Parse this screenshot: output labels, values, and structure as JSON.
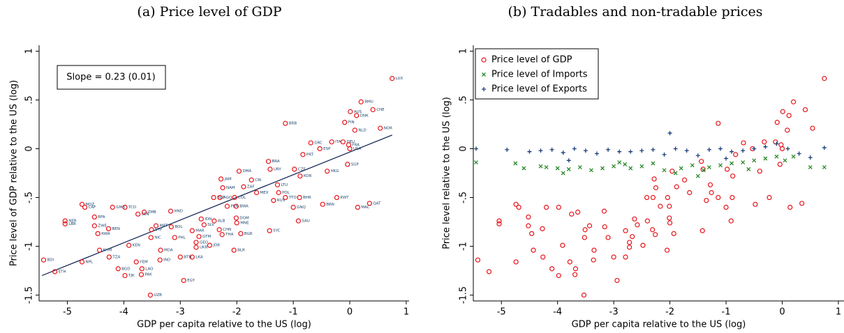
{
  "chart_data": [
    {
      "type": "scatter",
      "title": "(a) Price level of GDP",
      "xlabel": "GDP per capita relative to the US (log)",
      "ylabel": "Price level of GDP relative to the US (log)",
      "xlim": [
        -5.5,
        1.05
      ],
      "ylim": [
        -1.56,
        1.06
      ],
      "xticks": [
        -5,
        -4,
        -3,
        -2,
        -1,
        0,
        1
      ],
      "yticks": [
        -1.5,
        -1,
        {
          "value": -0.5,
          "label": "-.5"
        },
        0,
        {
          "value": 0.5,
          "label": ".5"
        },
        1
      ],
      "annotation": "Slope = 0.23 (0.01)",
      "color": "#e8151b",
      "label_color": "#1a476f",
      "fit_line": {
        "x": [
          -5.45,
          0.75
        ],
        "y": [
          -1.3,
          0.14
        ],
        "color": "#1a2b5a"
      },
      "point_labels": [
        "LUX",
        "BMU",
        "CHE",
        "AUS",
        "DNK",
        "NOR",
        "FIN",
        "BRB",
        "NLD",
        "GRC",
        "ITA",
        "DEU",
        "FRA",
        "ESP",
        "USA",
        "PRT",
        "SGP",
        "BRA",
        "URY",
        "DMA",
        "KOR",
        "HKG",
        "CZE",
        "JAM",
        "CRI",
        "NAM",
        "ZAF",
        "MEX",
        "TTO",
        "BHR",
        "KWT",
        "QAT",
        "MAC",
        "BRN",
        "GNQ",
        "SAU",
        "SYC",
        "MNE",
        "BGR",
        "BLR",
        "JOR",
        "UKR",
        "LKA",
        "EGY",
        "UZB",
        "MDA",
        "BTN",
        "IND",
        "PAK",
        "LAO",
        "TJK",
        "BGD",
        "YEM",
        "KHM",
        "KEN",
        "NPL",
        "TZA",
        "ETH",
        "BDI",
        "NER",
        "LBR",
        "RWA",
        "MOZ",
        "CAF",
        "BFA",
        "BEN",
        "GMB",
        "ZWE",
        "TCD",
        "SEN",
        "NIC",
        "ZMB",
        "MRT",
        "STP",
        "HND",
        "BOL",
        "PHL",
        "GTM",
        "MAR",
        "GEO",
        "ALB",
        "COL",
        "BLZ",
        "BWA",
        "PER",
        "THA",
        "IDN",
        "SLV",
        "AGO",
        "CHN",
        "DOM",
        "LTU",
        "POL",
        "RUS"
      ],
      "x": [
        0.75,
        0.2,
        0.41,
        0.01,
        0.12,
        0.54,
        -0.09,
        -1.14,
        0.09,
        -0.69,
        -0.32,
        -0.12,
        -0.02,
        -0.53,
        0,
        -0.83,
        -0.04,
        -1.44,
        -1.41,
        -1.96,
        -0.88,
        -0.4,
        -0.98,
        -2.28,
        -1.74,
        -2.25,
        -1.88,
        -1.65,
        -1.14,
        -0.89,
        -0.23,
        0.35,
        0.14,
        -0.48,
        -1.0,
        -0.91,
        -1.42,
        -2.0,
        -1.93,
        -2.05,
        -2.48,
        -2.72,
        -2.79,
        -2.94,
        -3.53,
        -3.35,
        -3.0,
        -3.36,
        -3.69,
        -3.68,
        -3.98,
        -4.1,
        -3.78,
        -4.43,
        -3.91,
        -4.74,
        -4.26,
        -5.22,
        -5.42,
        -5.04,
        -5.04,
        -4.46,
        -4.74,
        -4.69,
        -4.52,
        -4.27,
        -4.2,
        -4.52,
        -3.98,
        -3.75,
        -3.52,
        -3.64,
        -3.43,
        -3.51,
        -3.17,
        -3.16,
        -3.1,
        -2.67,
        -2.79,
        -2.72,
        -2.4,
        -2.04,
        -2.41,
        -2.01,
        -2.17,
        -2.26,
        -2.63,
        -2.58,
        -2.3,
        -2.31,
        -2.01,
        -1.28,
        -1.26,
        -1.35
      ],
      "values": [
        0.72,
        0.48,
        0.4,
        0.38,
        0.34,
        0.21,
        0.27,
        0.26,
        0.19,
        0.06,
        0.07,
        0.07,
        0.04,
        0,
        0,
        -0.06,
        -0.16,
        -0.13,
        -0.21,
        -0.23,
        -0.28,
        -0.23,
        -0.21,
        -0.31,
        -0.32,
        -0.4,
        -0.39,
        -0.45,
        -0.5,
        -0.5,
        -0.5,
        -0.56,
        -0.6,
        -0.57,
        -0.6,
        -0.74,
        -0.84,
        -0.76,
        -0.87,
        -1.04,
        -0.99,
        -1.01,
        -1.11,
        -1.35,
        -1.5,
        -1.04,
        -1.11,
        -1.14,
        -1.29,
        -1.23,
        -1.3,
        -1.23,
        -1.16,
        -1.04,
        -0.99,
        -1.16,
        -1.11,
        -1.26,
        -1.14,
        -0.74,
        -0.77,
        -0.87,
        -0.57,
        -0.6,
        -0.7,
        -0.82,
        -0.6,
        -0.79,
        -0.6,
        -0.67,
        -0.91,
        -0.65,
        -0.79,
        -0.83,
        -0.64,
        -0.8,
        -0.91,
        -0.9,
        -0.84,
        -0.96,
        -0.74,
        -0.5,
        -0.5,
        -0.59,
        -0.59,
        -0.88,
        -0.72,
        -0.78,
        -0.5,
        -0.83,
        -0.71,
        -0.37,
        -0.45,
        -0.53
      ]
    },
    {
      "type": "scatter",
      "title": "(b) Tradables and non-tradable prices",
      "xlabel": "GDP per capita relative to the US (log)",
      "ylabel": "Price level relative to the US (log)",
      "xlim": [
        -5.5,
        1.1
      ],
      "ylim": [
        -1.56,
        1.06
      ],
      "xticks": [
        -5,
        -4,
        -3,
        -2,
        -1,
        0,
        1
      ],
      "yticks": [
        -1.5,
        -1,
        {
          "value": -0.5,
          "label": "-.5"
        },
        0,
        {
          "value": 0.5,
          "label": ".5"
        },
        1
      ],
      "legend": "top-left",
      "series": [
        {
          "name": "Price level of GDP",
          "color": "#e8151b",
          "marker": "circle",
          "x": [
            0.75,
            0.2,
            0.41,
            0.01,
            0.12,
            0.54,
            -0.09,
            -1.14,
            0.09,
            -0.69,
            -0.32,
            -0.12,
            -0.02,
            -0.53,
            0,
            -0.83,
            -0.04,
            -1.44,
            -1.41,
            -1.96,
            -0.88,
            -0.4,
            -0.98,
            -2.28,
            -1.74,
            -2.25,
            -1.88,
            -1.65,
            -1.14,
            -0.89,
            -0.23,
            0.35,
            0.14,
            -0.48,
            -1.0,
            -0.91,
            -1.42,
            -2.0,
            -1.93,
            -2.05,
            -2.48,
            -2.72,
            -2.79,
            -2.94,
            -3.53,
            -3.35,
            -3.0,
            -3.36,
            -3.69,
            -3.68,
            -3.98,
            -4.1,
            -3.78,
            -4.43,
            -3.91,
            -4.74,
            -4.26,
            -5.22,
            -5.42,
            -5.04,
            -5.04,
            -4.46,
            -4.74,
            -4.69,
            -4.52,
            -4.27,
            -4.2,
            -4.52,
            -3.98,
            -3.75,
            -3.52,
            -3.64,
            -3.43,
            -3.51,
            -3.17,
            -3.16,
            -3.1,
            -2.67,
            -2.79,
            -2.72,
            -2.4,
            -2.04,
            -2.41,
            -2.01,
            -2.17,
            -2.26,
            -2.63,
            -2.58,
            -2.3,
            -2.31,
            -2.01,
            -1.28,
            -1.26,
            -1.35
          ],
          "values": [
            0.72,
            0.48,
            0.4,
            0.38,
            0.34,
            0.21,
            0.27,
            0.26,
            0.19,
            0.06,
            0.07,
            0.07,
            0.04,
            0,
            0,
            -0.06,
            -0.16,
            -0.13,
            -0.21,
            -0.23,
            -0.28,
            -0.23,
            -0.21,
            -0.31,
            -0.32,
            -0.4,
            -0.39,
            -0.45,
            -0.5,
            -0.5,
            -0.5,
            -0.56,
            -0.6,
            -0.57,
            -0.6,
            -0.74,
            -0.84,
            -0.76,
            -0.87,
            -1.04,
            -0.99,
            -1.01,
            -1.11,
            -1.35,
            -1.5,
            -1.04,
            -1.11,
            -1.14,
            -1.29,
            -1.23,
            -1.3,
            -1.23,
            -1.16,
            -1.04,
            -0.99,
            -1.16,
            -1.11,
            -1.26,
            -1.14,
            -0.74,
            -0.77,
            -0.87,
            -0.57,
            -0.6,
            -0.7,
            -0.82,
            -0.6,
            -0.79,
            -0.6,
            -0.67,
            -0.91,
            -0.65,
            -0.79,
            -0.83,
            -0.64,
            -0.8,
            -0.91,
            -0.9,
            -0.84,
            -0.96,
            -0.74,
            -0.5,
            -0.5,
            -0.59,
            -0.59,
            -0.88,
            -0.72,
            -0.78,
            -0.5,
            -0.83,
            -0.71,
            -0.37,
            -0.45,
            -0.53
          ]
        },
        {
          "name": "Price level of Imports",
          "color": "#2a8a2a",
          "marker": "x",
          "x": [
            -5.45,
            -4.75,
            -4.6,
            -4.3,
            -4.2,
            -4.0,
            -3.8,
            -3.6,
            -3.4,
            -3.2,
            -3.0,
            -2.8,
            -2.7,
            -2.5,
            -2.3,
            -2.1,
            -1.9,
            -1.8,
            -1.6,
            -1.4,
            -1.3,
            -1.1,
            -0.9,
            -0.7,
            -0.5,
            -0.3,
            -0.1,
            0.05,
            0.2,
            0.5,
            0.75,
            -3.9,
            -2.9,
            -1.5,
            -0.6
          ],
          "values": [
            -0.14,
            -0.15,
            -0.2,
            -0.18,
            -0.19,
            -0.2,
            -0.21,
            -0.19,
            -0.22,
            -0.2,
            -0.18,
            -0.16,
            -0.2,
            -0.18,
            -0.15,
            -0.22,
            -0.25,
            -0.2,
            -0.17,
            -0.22,
            -0.19,
            -0.17,
            -0.15,
            -0.14,
            -0.12,
            -0.1,
            -0.08,
            -0.12,
            -0.08,
            -0.19,
            -0.19,
            -0.25,
            -0.14,
            -0.28,
            -0.21
          ]
        },
        {
          "name": "Price level of Exports",
          "color": "#1a3f7a",
          "marker": "plus",
          "x": [
            -5.45,
            -4.9,
            -4.5,
            -4.3,
            -4.1,
            -3.9,
            -3.7,
            -3.5,
            -3.3,
            -3.1,
            -2.9,
            -2.7,
            -2.5,
            -2.3,
            -2.1,
            -1.9,
            -1.7,
            -1.5,
            -1.3,
            -1.1,
            -0.9,
            -0.7,
            -0.5,
            -0.3,
            -0.1,
            0.1,
            0.3,
            0.5,
            0.75,
            -2.0,
            -1.0,
            -3.8
          ],
          "values": [
            0.0,
            -0.01,
            -0.03,
            -0.02,
            -0.01,
            -0.04,
            0.0,
            -0.02,
            -0.05,
            -0.01,
            -0.03,
            -0.03,
            -0.02,
            -0.01,
            -0.06,
            0.0,
            -0.02,
            -0.07,
            -0.01,
            0.0,
            -0.03,
            -0.02,
            0.0,
            0.02,
            0.05,
            0.0,
            -0.05,
            -0.09,
            0.01,
            0.16,
            -0.1,
            -0.12
          ]
        }
      ]
    }
  ]
}
